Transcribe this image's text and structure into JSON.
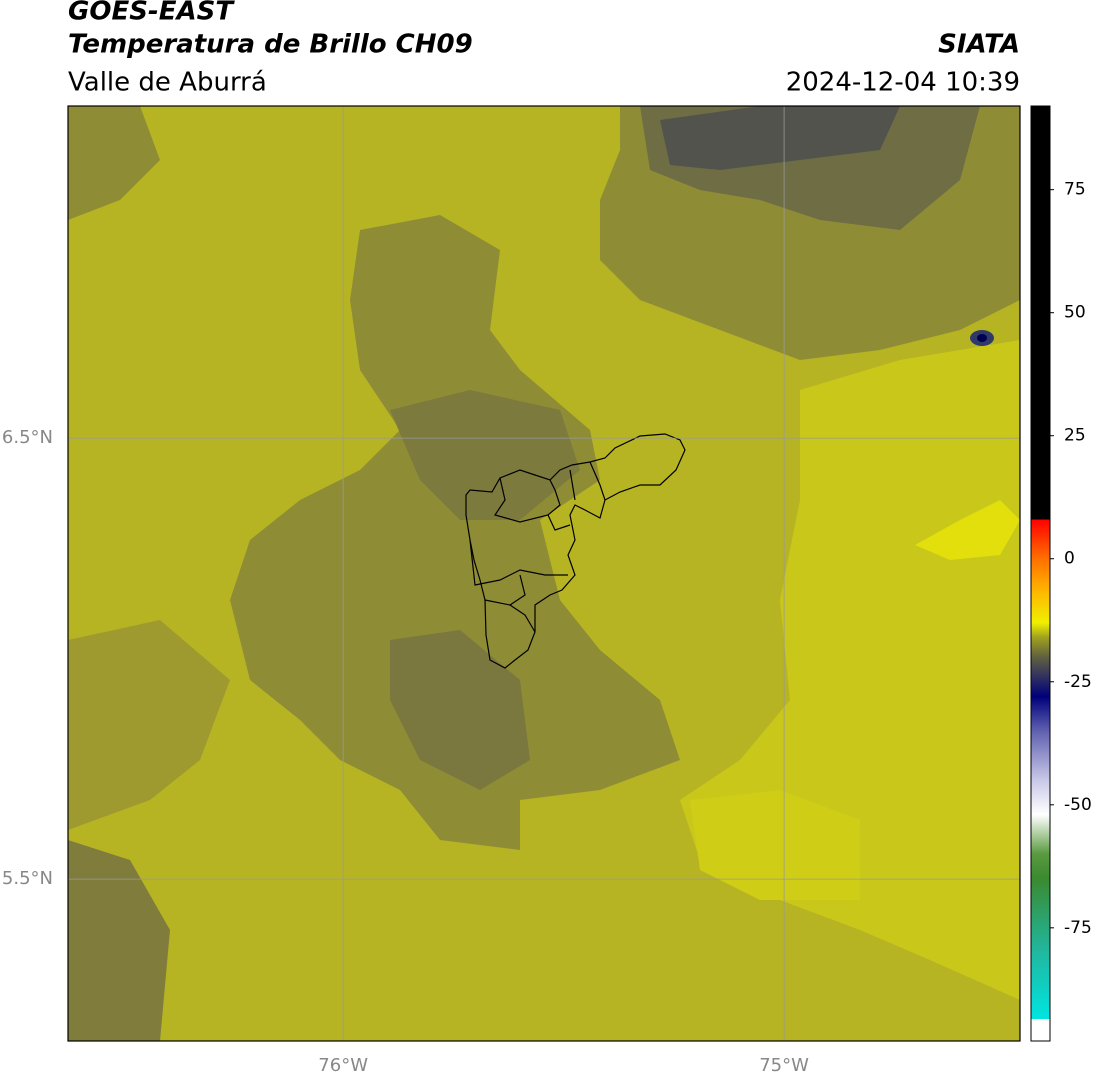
{
  "header": {
    "title": "GOES-EAST",
    "subtitle": "Temperatura de Brillo CH09",
    "region": "Valle de Aburrá",
    "source": "SIATA",
    "datetime": "2024-12-04 10:39"
  },
  "chart_data": {
    "type": "map",
    "xlim": [
      -76.624,
      -74.465
    ],
    "ylim": [
      5.133,
      7.253
    ],
    "xticks": [
      {
        "value": -76,
        "label": "76°W"
      },
      {
        "value": -75,
        "label": "75°W"
      }
    ],
    "yticks": [
      {
        "value": 6.5,
        "label": "6.5°N"
      },
      {
        "value": 5.5,
        "label": "5.5°N"
      }
    ],
    "grid": true,
    "colorbar": {
      "lim": [
        -98,
        92
      ],
      "ticks": [
        75,
        50,
        25,
        0,
        -25,
        -50,
        -75
      ],
      "stops": [
        {
          "value": -98,
          "color": "#ffffff"
        },
        {
          "value": -93.5,
          "color": "#ffffff"
        },
        {
          "value": -93.5,
          "color": "#00e5e0"
        },
        {
          "value": -80,
          "color": "#20b8a0"
        },
        {
          "value": -65,
          "color": "#3a8a30"
        },
        {
          "value": -60,
          "color": "#5a9a40"
        },
        {
          "value": -52,
          "color": "#ffffff"
        },
        {
          "value": -45,
          "color": "#c8c8e8"
        },
        {
          "value": -35,
          "color": "#6060b0"
        },
        {
          "value": -28,
          "color": "#00007a"
        },
        {
          "value": -24,
          "color": "#303060"
        },
        {
          "value": -20,
          "color": "#606040"
        },
        {
          "value": -16,
          "color": "#a0a020"
        },
        {
          "value": -13,
          "color": "#f0f000"
        },
        {
          "value": -6,
          "color": "#ffb000"
        },
        {
          "value": 0,
          "color": "#ff7000"
        },
        {
          "value": 8,
          "color": "#ff0000"
        },
        {
          "value": 8,
          "color": "#000000"
        },
        {
          "value": 92,
          "color": "#000000"
        }
      ]
    }
  }
}
